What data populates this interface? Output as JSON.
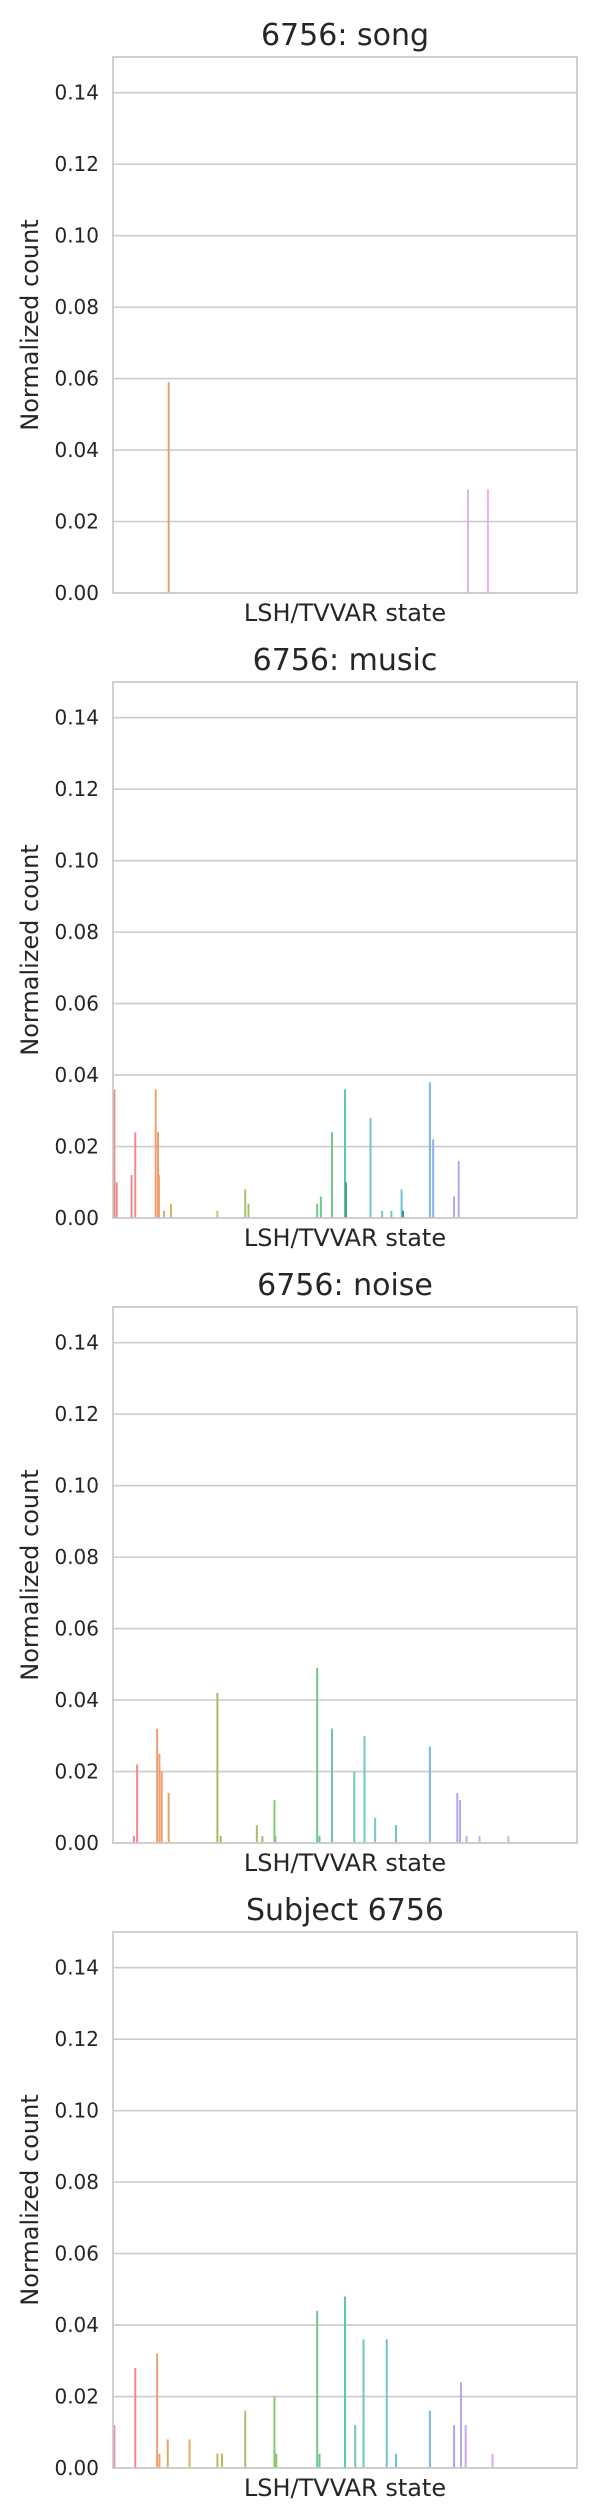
{
  "chart_data": [
    {
      "type": "bar",
      "title": "6756: song",
      "xlabel": "LSH/TVVAR state",
      "ylabel": "Normalized count",
      "ylim": [
        0,
        0.15
      ],
      "yticks": [
        "0.00",
        "0.02",
        "0.04",
        "0.06",
        "0.08",
        "0.10",
        "0.12",
        "0.14"
      ],
      "grid": true,
      "bars": [
        {
          "x": 0.12,
          "value": 0.059,
          "color": "#e1a667"
        },
        {
          "x": 0.765,
          "value": 0.029,
          "color": "#d8b4ef"
        },
        {
          "x": 0.808,
          "value": 0.029,
          "color": "#ecb0e6"
        }
      ]
    },
    {
      "type": "bar",
      "title": "6756: music",
      "xlabel": "LSH/TVVAR state",
      "ylabel": "Normalized count",
      "ylim": [
        0,
        0.15
      ],
      "yticks": [
        "0.00",
        "0.02",
        "0.04",
        "0.06",
        "0.08",
        "0.10",
        "0.12",
        "0.14"
      ],
      "grid": true,
      "bars": [
        {
          "x": 0.003,
          "value": 0.036,
          "color": "#f08a8a"
        },
        {
          "x": 0.008,
          "value": 0.01,
          "color": "#f08a8a"
        },
        {
          "x": 0.04,
          "value": 0.012,
          "color": "#f08a8a"
        },
        {
          "x": 0.048,
          "value": 0.024,
          "color": "#f08a8a"
        },
        {
          "x": 0.092,
          "value": 0.036,
          "color": "#f0a070"
        },
        {
          "x": 0.097,
          "value": 0.024,
          "color": "#f0a070"
        },
        {
          "x": 0.099,
          "value": 0.012,
          "color": "#f0a070"
        },
        {
          "x": 0.11,
          "value": 0.002,
          "color": "#f0a070"
        },
        {
          "x": 0.125,
          "value": 0.004,
          "color": "#e0b060"
        },
        {
          "x": 0.225,
          "value": 0.002,
          "color": "#c8c070"
        },
        {
          "x": 0.285,
          "value": 0.008,
          "color": "#a8c070"
        },
        {
          "x": 0.292,
          "value": 0.004,
          "color": "#a8c070"
        },
        {
          "x": 0.44,
          "value": 0.004,
          "color": "#70c890"
        },
        {
          "x": 0.448,
          "value": 0.006,
          "color": "#70c890"
        },
        {
          "x": 0.472,
          "value": 0.024,
          "color": "#70c890"
        },
        {
          "x": 0.5,
          "value": 0.036,
          "color": "#60c8a8"
        },
        {
          "x": 0.502,
          "value": 0.01,
          "color": "#40a080"
        },
        {
          "x": 0.555,
          "value": 0.028,
          "color": "#70c8c8"
        },
        {
          "x": 0.58,
          "value": 0.002,
          "color": "#70c8c8"
        },
        {
          "x": 0.6,
          "value": 0.002,
          "color": "#70c8c8"
        },
        {
          "x": 0.622,
          "value": 0.008,
          "color": "#70c0d8"
        },
        {
          "x": 0.625,
          "value": 0.002,
          "color": "#3090b0"
        },
        {
          "x": 0.683,
          "value": 0.038,
          "color": "#78b8e8"
        },
        {
          "x": 0.69,
          "value": 0.022,
          "color": "#8ab0f0"
        },
        {
          "x": 0.735,
          "value": 0.006,
          "color": "#b0a8f0"
        },
        {
          "x": 0.745,
          "value": 0.016,
          "color": "#b0a8f0"
        }
      ]
    },
    {
      "type": "bar",
      "title": "6756: noise",
      "xlabel": "LSH/TVVAR state",
      "ylabel": "Normalized count",
      "ylim": [
        0,
        0.15
      ],
      "yticks": [
        "0.00",
        "0.02",
        "0.04",
        "0.06",
        "0.08",
        "0.10",
        "0.12",
        "0.14"
      ],
      "grid": true,
      "bars": [
        {
          "x": 0.045,
          "value": 0.002,
          "color": "#f08a8a"
        },
        {
          "x": 0.052,
          "value": 0.022,
          "color": "#f08a8a"
        },
        {
          "x": 0.095,
          "value": 0.032,
          "color": "#f0a070"
        },
        {
          "x": 0.1,
          "value": 0.025,
          "color": "#f0a070"
        },
        {
          "x": 0.105,
          "value": 0.02,
          "color": "#f0a070"
        },
        {
          "x": 0.12,
          "value": 0.014,
          "color": "#e0a860"
        },
        {
          "x": 0.225,
          "value": 0.042,
          "color": "#b0b860"
        },
        {
          "x": 0.232,
          "value": 0.002,
          "color": "#b0b860"
        },
        {
          "x": 0.31,
          "value": 0.005,
          "color": "#a8c070"
        },
        {
          "x": 0.322,
          "value": 0.002,
          "color": "#a8c070"
        },
        {
          "x": 0.348,
          "value": 0.012,
          "color": "#88c870"
        },
        {
          "x": 0.35,
          "value": 0.002,
          "color": "#88c870"
        },
        {
          "x": 0.44,
          "value": 0.049,
          "color": "#70c890"
        },
        {
          "x": 0.445,
          "value": 0.002,
          "color": "#70c890"
        },
        {
          "x": 0.472,
          "value": 0.032,
          "color": "#70c8a0"
        },
        {
          "x": 0.52,
          "value": 0.02,
          "color": "#70c8b0"
        },
        {
          "x": 0.542,
          "value": 0.03,
          "color": "#70c8c0"
        },
        {
          "x": 0.565,
          "value": 0.007,
          "color": "#70c8c8"
        },
        {
          "x": 0.61,
          "value": 0.005,
          "color": "#70c0d8"
        },
        {
          "x": 0.683,
          "value": 0.027,
          "color": "#78b8e8"
        },
        {
          "x": 0.742,
          "value": 0.014,
          "color": "#b0a8f0"
        },
        {
          "x": 0.748,
          "value": 0.012,
          "color": "#b0a8f0"
        },
        {
          "x": 0.762,
          "value": 0.002,
          "color": "#c8a8f0"
        },
        {
          "x": 0.79,
          "value": 0.002,
          "color": "#d8a8f0"
        },
        {
          "x": 0.852,
          "value": 0.002,
          "color": "#e8a8e8"
        }
      ]
    },
    {
      "type": "bar",
      "title": "Subject 6756",
      "xlabel": "LSH/TVVAR state",
      "ylabel": "Normalized count",
      "ylim": [
        0,
        0.15
      ],
      "yticks": [
        "0.00",
        "0.02",
        "0.04",
        "0.06",
        "0.08",
        "0.10",
        "0.12",
        "0.14"
      ],
      "grid": true,
      "bars": [
        {
          "x": 0.003,
          "value": 0.012,
          "color": "#f090a0"
        },
        {
          "x": 0.048,
          "value": 0.028,
          "color": "#f08a8a"
        },
        {
          "x": 0.095,
          "value": 0.032,
          "color": "#f0a070"
        },
        {
          "x": 0.1,
          "value": 0.004,
          "color": "#f0a070"
        },
        {
          "x": 0.118,
          "value": 0.008,
          "color": "#e0a860"
        },
        {
          "x": 0.165,
          "value": 0.008,
          "color": "#e0b060"
        },
        {
          "x": 0.225,
          "value": 0.004,
          "color": "#c0b860"
        },
        {
          "x": 0.235,
          "value": 0.004,
          "color": "#c0b860"
        },
        {
          "x": 0.285,
          "value": 0.016,
          "color": "#a8c070"
        },
        {
          "x": 0.348,
          "value": 0.02,
          "color": "#88c870"
        },
        {
          "x": 0.352,
          "value": 0.004,
          "color": "#88c870"
        },
        {
          "x": 0.44,
          "value": 0.044,
          "color": "#70c890"
        },
        {
          "x": 0.445,
          "value": 0.004,
          "color": "#70c890"
        },
        {
          "x": 0.5,
          "value": 0.048,
          "color": "#60c8a8"
        },
        {
          "x": 0.522,
          "value": 0.012,
          "color": "#70c8b0"
        },
        {
          "x": 0.54,
          "value": 0.036,
          "color": "#70c8c0"
        },
        {
          "x": 0.59,
          "value": 0.036,
          "color": "#70c8c8"
        },
        {
          "x": 0.61,
          "value": 0.004,
          "color": "#70c0d8"
        },
        {
          "x": 0.683,
          "value": 0.016,
          "color": "#78b8e8"
        },
        {
          "x": 0.735,
          "value": 0.012,
          "color": "#a8a8f0"
        },
        {
          "x": 0.75,
          "value": 0.024,
          "color": "#b8a8f0"
        },
        {
          "x": 0.76,
          "value": 0.012,
          "color": "#c8a8f0"
        },
        {
          "x": 0.818,
          "value": 0.004,
          "color": "#e0a8f0"
        }
      ]
    }
  ]
}
